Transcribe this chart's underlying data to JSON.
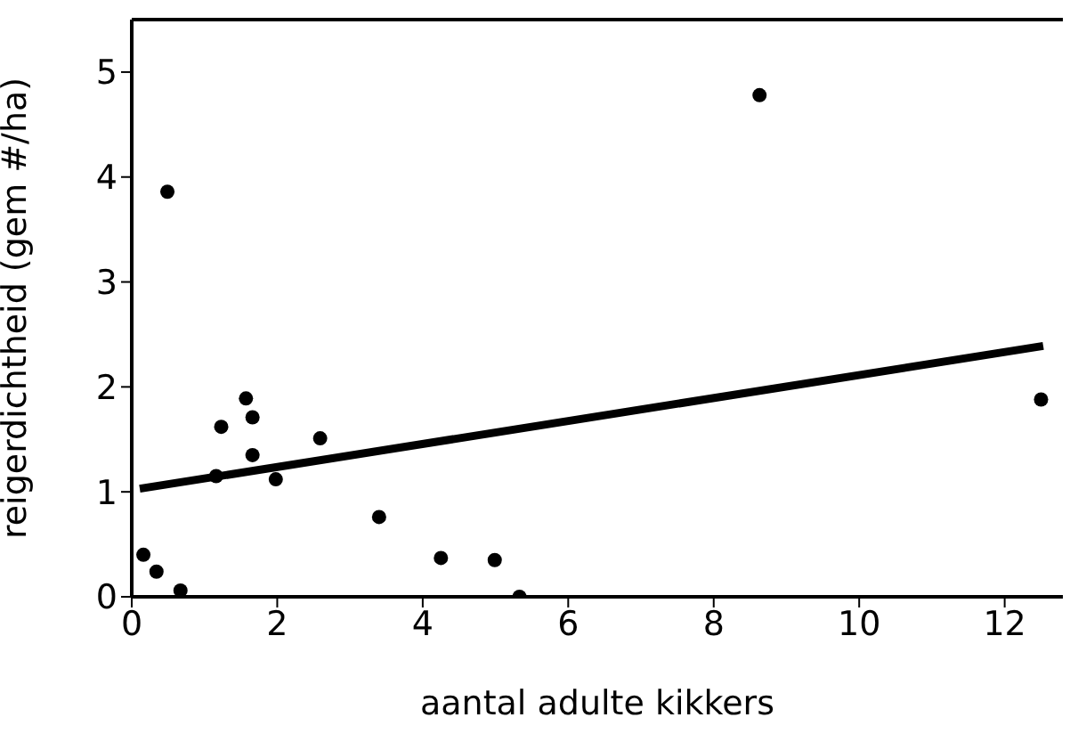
{
  "chart_data": {
    "type": "scatter",
    "xlabel": "aantal adulte kikkers",
    "ylabel": "reigerdichtheid (gem #/ha)",
    "xlim": [
      0,
      12.8
    ],
    "xticks": [
      0,
      2,
      4,
      6,
      8,
      10,
      12
    ],
    "ylim": [
      0,
      5.5
    ],
    "yticks": [
      0,
      1,
      2,
      3,
      4,
      5
    ],
    "marker": "circle",
    "series": [
      {
        "color": "#000000",
        "x": [
          0.16,
          0.34,
          0.67,
          0.49,
          1.16,
          1.23,
          1.57,
          1.66,
          1.66,
          1.98,
          2.59,
          3.4,
          4.25,
          4.99,
          5.33,
          8.63,
          12.5
        ],
        "values": [
          0.4,
          0.24,
          0.06,
          3.86,
          1.15,
          1.62,
          1.89,
          1.71,
          1.35,
          1.12,
          1.51,
          0.76,
          0.37,
          0.35,
          0,
          4.78,
          1.88
        ]
      },
      {
        "type": "line",
        "color": "#000000",
        "marker": "none",
        "line_style": "solid",
        "x": [
          0.11,
          12.53
        ],
        "values": [
          1.03,
          2.39
        ]
      }
    ]
  }
}
